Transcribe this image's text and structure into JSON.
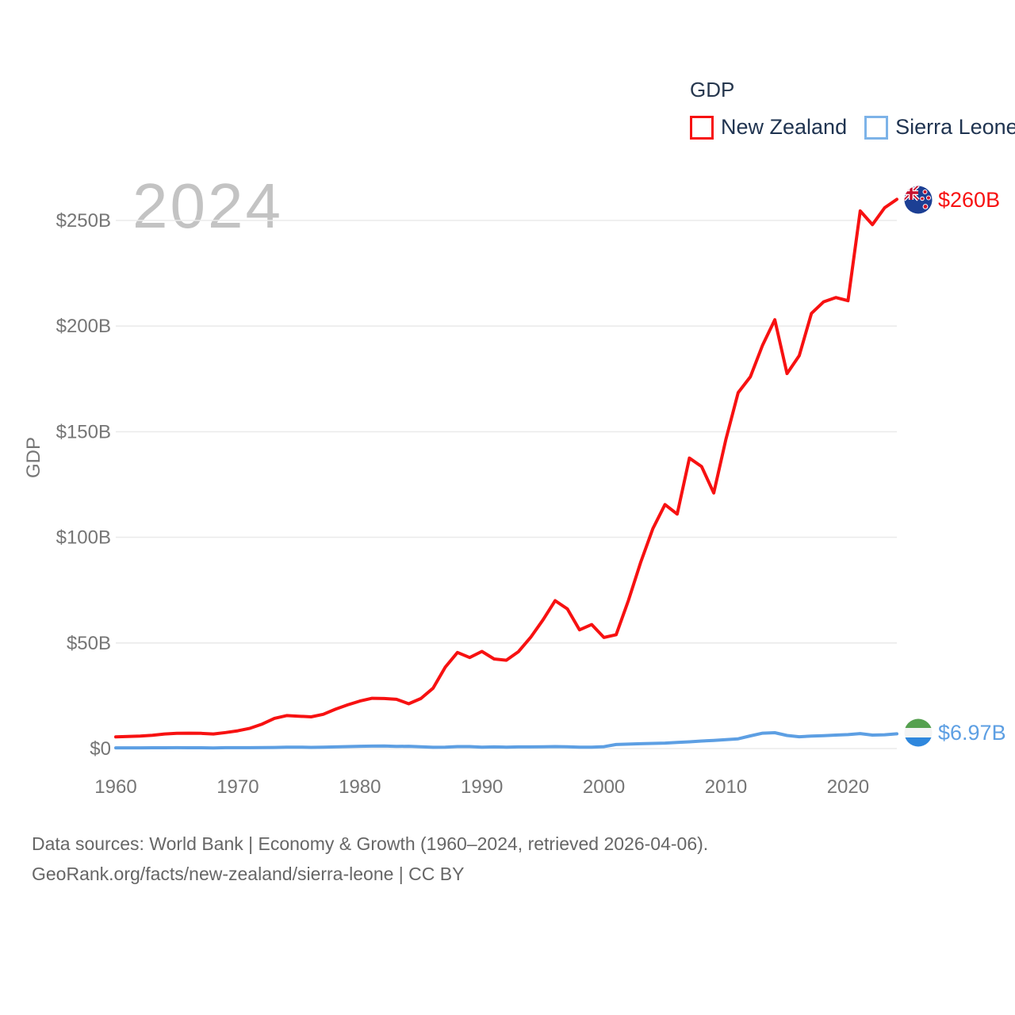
{
  "legend": {
    "title": "GDP",
    "items": [
      {
        "label": "New Zealand",
        "color": "#f71111"
      },
      {
        "label": "Sierra Leone",
        "color": "#7db3e8"
      }
    ]
  },
  "watermark": "2024",
  "axis": {
    "y_label": "GDP",
    "y_ticks": [
      "$250B",
      "$200B",
      "$150B",
      "$100B",
      "$50B",
      "$0"
    ],
    "x_ticks": [
      "1960",
      "1970",
      "1980",
      "1990",
      "2000",
      "2010",
      "2020"
    ]
  },
  "end_labels": {
    "new_zealand": "$260B",
    "sierra_leone": "$6.97B"
  },
  "footer": {
    "line1": "Data sources: World Bank | Economy & Growth (1960–2024, retrieved 2026-04-06).",
    "line2": "GeoRank.org/facts/new-zealand/sierra-leone | CC BY"
  },
  "chart_data": {
    "type": "line",
    "title": "GDP",
    "ylabel": "GDP",
    "unit": "billion USD",
    "xlim": [
      1960,
      2024
    ],
    "ylim": [
      0,
      250
    ],
    "y_gridline_step": 50,
    "grid": "horizontal",
    "legend_position": "top-right",
    "x": [
      1960,
      1961,
      1962,
      1963,
      1964,
      1965,
      1966,
      1967,
      1968,
      1969,
      1970,
      1971,
      1972,
      1973,
      1974,
      1975,
      1976,
      1977,
      1978,
      1979,
      1980,
      1981,
      1982,
      1983,
      1984,
      1985,
      1986,
      1987,
      1988,
      1989,
      1990,
      1991,
      1992,
      1993,
      1994,
      1995,
      1996,
      1997,
      1998,
      1999,
      2000,
      2001,
      2002,
      2003,
      2004,
      2005,
      2006,
      2007,
      2008,
      2009,
      2010,
      2011,
      2012,
      2013,
      2014,
      2015,
      2016,
      2017,
      2018,
      2019,
      2020,
      2021,
      2022,
      2023,
      2024
    ],
    "series": [
      {
        "name": "New Zealand",
        "color": "#f71111",
        "end_value_label": "$260B",
        "values": [
          5.5,
          5.7,
          5.9,
          6.3,
          6.9,
          7.2,
          7.3,
          7.2,
          6.9,
          7.6,
          8.4,
          9.6,
          11.6,
          14.3,
          15.6,
          15.3,
          15.0,
          16.2,
          18.6,
          20.7,
          22.5,
          23.8,
          23.7,
          23.3,
          21.2,
          23.7,
          28.6,
          38.5,
          45.5,
          43.1,
          46.0,
          42.4,
          41.8,
          45.9,
          52.7,
          60.9,
          70.0,
          66.1,
          56.2,
          58.7,
          52.6,
          53.9,
          70.0,
          88.0,
          104.0,
          115.5,
          111.0,
          137.5,
          133.5,
          121.0,
          146.5,
          168.5,
          176.0,
          191.0,
          203.0,
          177.5,
          186.0,
          206.0,
          211.5,
          213.5,
          212.0,
          254.5,
          248.0,
          256.0,
          260.0
        ]
      },
      {
        "name": "Sierra Leone",
        "color": "#5d9fe3",
        "end_value_label": "$6.97B",
        "values": [
          0.32,
          0.34,
          0.35,
          0.36,
          0.38,
          0.4,
          0.36,
          0.37,
          0.31,
          0.4,
          0.43,
          0.42,
          0.46,
          0.54,
          0.62,
          0.67,
          0.56,
          0.63,
          0.8,
          0.94,
          1.1,
          1.15,
          1.25,
          1.0,
          1.09,
          0.87,
          0.6,
          0.69,
          0.94,
          0.93,
          0.65,
          0.78,
          0.68,
          0.77,
          0.79,
          0.87,
          0.94,
          0.85,
          0.67,
          0.67,
          0.9,
          1.9,
          2.1,
          2.3,
          2.45,
          2.6,
          2.9,
          3.2,
          3.55,
          3.85,
          4.2,
          4.6,
          6.0,
          7.3,
          7.5,
          6.2,
          5.6,
          5.9,
          6.1,
          6.4,
          6.6,
          7.1,
          6.4,
          6.55,
          6.97
        ]
      }
    ]
  },
  "colors": {
    "gridline": "#ebebeb",
    "tick_text": "#757575",
    "watermark": "#c3c3c3",
    "footer_text": "#666666",
    "legend_text": "#1f3350"
  }
}
